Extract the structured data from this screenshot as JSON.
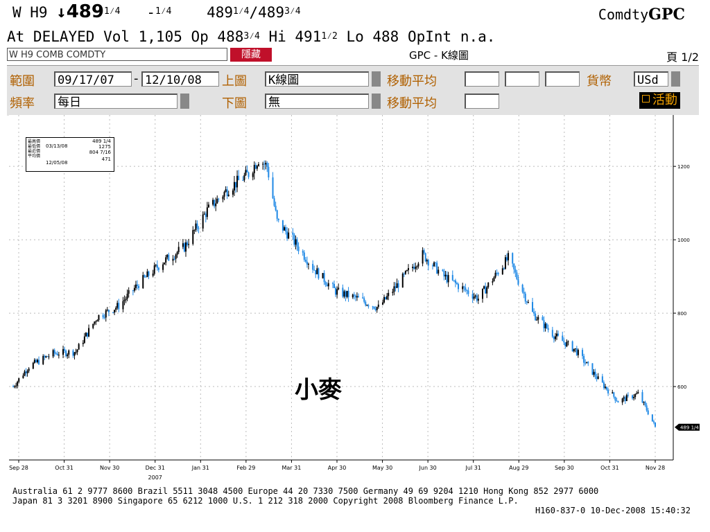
{
  "header": {
    "ticker": "W H9",
    "last_int": "489",
    "last_frac": "1",
    "last_frac_den": "4",
    "change": "-",
    "change_frac": "1",
    "change_den": "4",
    "bid_int": "489",
    "bid_frac": "1",
    "bid_den": "4",
    "ask_int": "489",
    "ask_frac": "3",
    "ask_den": "4",
    "brand_prefix": "Comdty",
    "brand_name": "GPC"
  },
  "quote_line": {
    "text_a": "At DELAYED Vol 1,105 Op 488",
    "op_frac": "3",
    "op_den": "4",
    "text_b": " Hi 491",
    "hi_frac": "1",
    "hi_den": "2",
    "text_c": " Lo 488 OpInt n.a."
  },
  "security_row": {
    "security": "W H9 COMB COMDTY",
    "hide_label": "隱藏",
    "screen_title": "GPC - K線圖",
    "page_label": "頁 1/2"
  },
  "panel": {
    "range_label": "範圍",
    "date_from": "09/17/07",
    "dash": "-",
    "date_to": "12/10/08",
    "upper_label": "上圖",
    "upper_value": "K線圖",
    "ma_label1": "移動平均",
    "currency_label": "貨幣",
    "currency_value": "USd",
    "freq_label": "頻率",
    "freq_value": "每日",
    "lower_label": "下圖",
    "lower_value": "無",
    "ma_label2": "移動平均",
    "active_label": "活動"
  },
  "legend": {
    "labels": [
      "最高價",
      "最低價",
      "最近價",
      "平均價"
    ],
    "date_high": "03/13/08",
    "date_low": "12/05/08",
    "last": "489 1/4",
    "high": "1275",
    "avg": "804 7/16",
    "low": "471"
  },
  "chart_data": {
    "type": "candlestick",
    "title": "小麥",
    "x_tick_labels": [
      "Sep 28",
      "Oct 31",
      "Nov 30",
      "Dec 31",
      "Jan 31",
      "Feb 29",
      "Mar 31",
      "Apr 30",
      "May 30",
      "Jun 30",
      "Jul 31",
      "Aug 29",
      "Sep 30",
      "Oct 31",
      "Nov 28"
    ],
    "year_label": "2007",
    "y_ticks": [
      600,
      800,
      1000,
      1200
    ],
    "ylim": [
      400,
      1340
    ],
    "last_marker": "489 1/4",
    "grid": true,
    "up_color": "#000000",
    "down_color": "#1e88e5",
    "x": [
      "2007-09-17",
      "2007-09-28",
      "2007-10-15",
      "2007-10-31",
      "2007-11-15",
      "2007-11-30",
      "2007-12-14",
      "2007-12-31",
      "2008-01-15",
      "2008-01-31",
      "2008-02-15",
      "2008-02-29",
      "2008-03-07",
      "2008-03-13",
      "2008-03-20",
      "2008-03-31",
      "2008-04-15",
      "2008-04-30",
      "2008-05-15",
      "2008-05-30",
      "2008-06-15",
      "2008-06-30",
      "2008-07-15",
      "2008-07-31",
      "2008-08-08",
      "2008-08-29",
      "2008-09-15",
      "2008-09-30",
      "2008-10-15",
      "2008-10-31",
      "2008-11-14",
      "2008-11-28",
      "2008-12-05",
      "2008-12-10"
    ],
    "close": [
      600,
      655,
      690,
      695,
      790,
      820,
      880,
      940,
      980,
      1080,
      1140,
      1180,
      1220,
      1200,
      1050,
      1000,
      920,
      860,
      840,
      815,
      890,
      960,
      900,
      860,
      840,
      950,
      800,
      740,
      700,
      620,
      560,
      580,
      530,
      489.25
    ]
  },
  "footer": {
    "line1": "Australia 61 2 9777 8600 Brazil 5511 3048 4500 Europe 44 20 7330 7500 Germany 49 69 9204 1210 Hong Kong 852 2977 6000",
    "line2": "Japan 81 3 3201 8900       Singapore 65 6212 1000      U.S. 1 212 318 2000        Copyright 2008 Bloomberg Finance L.P.",
    "line3": "H160-837-0 10-Dec-2008 15:40:32"
  }
}
